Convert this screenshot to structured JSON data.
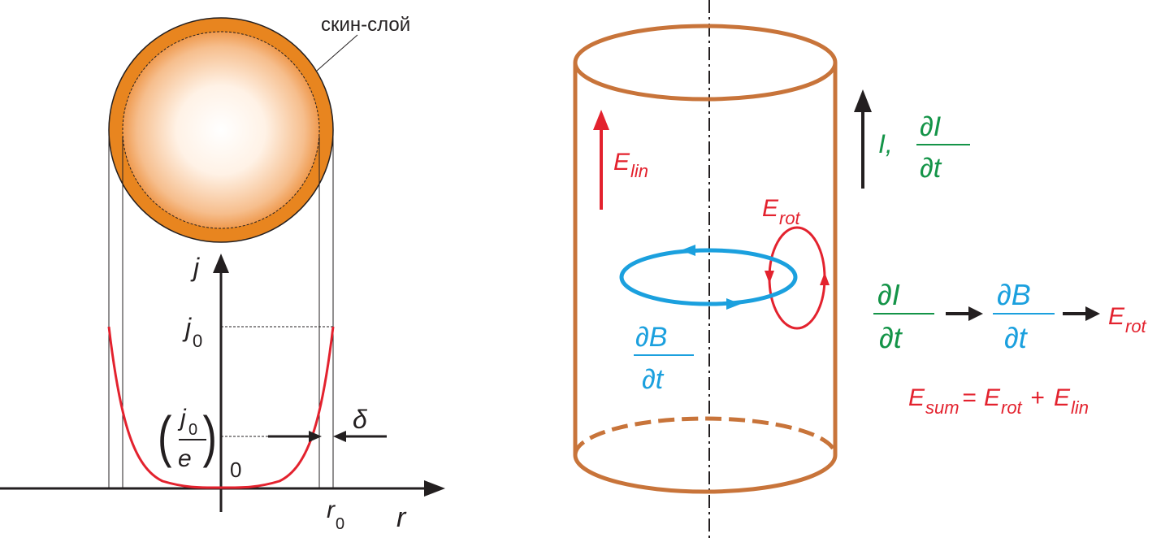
{
  "skin_label": "скин-слой",
  "graph": {
    "axis_y": "j",
    "axis_x": "r",
    "j0_main": "j",
    "j0_sub": "0",
    "je_num_main": "j",
    "je_num_sub": "0",
    "je_den": "e",
    "origin": "0",
    "r0_main": "r",
    "r0_sub": "0",
    "delta": "δ"
  },
  "cylinder": {
    "e_lin_main": "E",
    "e_lin_sub": "lin",
    "current_label": "I,",
    "dI_num": "∂I",
    "dt": "∂t",
    "e_rot_main": "E",
    "e_rot_sub": "rot",
    "dB_num": "∂B"
  },
  "equations": {
    "chain_dI": "∂I",
    "chain_dt1": "∂t",
    "chain_dB": "∂B",
    "chain_dt2": "∂t",
    "chain_E": "E",
    "chain_E_sub": "rot",
    "sum_E1": "E",
    "sum_E1_sub": "sum",
    "sum_eq": "= ",
    "sum_E2": "E",
    "sum_E2_sub": "rot",
    "sum_plus": "+ ",
    "sum_E3": "E",
    "sum_E3_sub": "lin"
  },
  "colors": {
    "orange": "#e8851f",
    "copper": "#c8743a",
    "red": "#e3222e",
    "green": "#149448",
    "blue": "#1ba0de",
    "black": "#231f20"
  }
}
